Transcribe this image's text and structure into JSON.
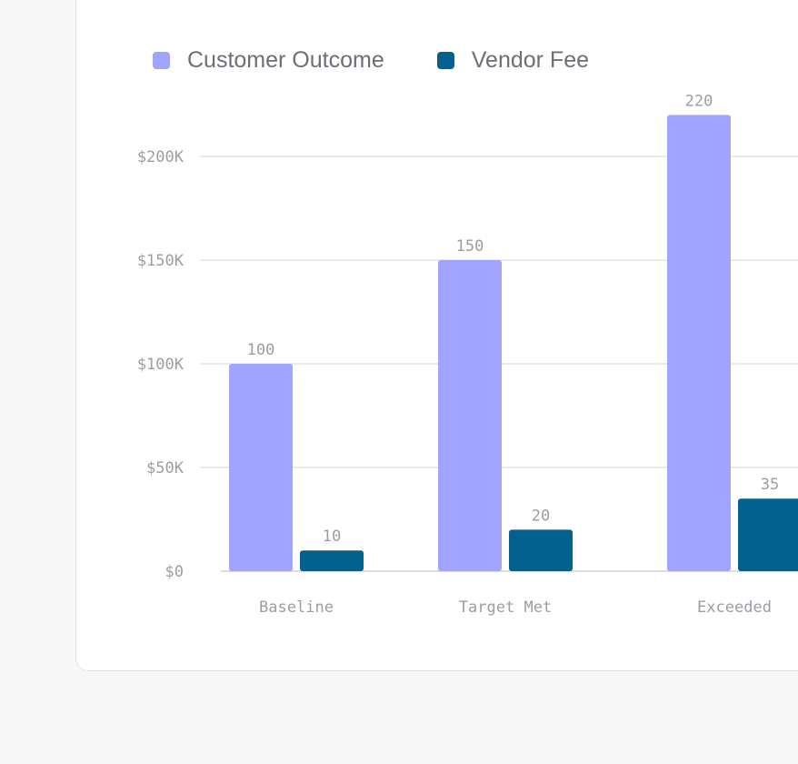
{
  "chart_data": {
    "type": "bar",
    "categories": [
      "Baseline",
      "Target Met",
      "Exceeded"
    ],
    "series": [
      {
        "name": "Customer Outcome",
        "values": [
          100,
          150,
          220
        ],
        "color": "#a0a4ff"
      },
      {
        "name": "Vendor Fee",
        "values": [
          10,
          20,
          35
        ],
        "color": "#02618f"
      }
    ],
    "data_labels": [
      [
        "100",
        "150",
        "220"
      ],
      [
        "10",
        "20",
        "35"
      ]
    ],
    "ytick_values": [
      0,
      50,
      100,
      150,
      200
    ],
    "ytick_labels": [
      "$0",
      "$50K",
      "$100K",
      "$150K",
      "$200K"
    ],
    "ylim": [
      0,
      200
    ],
    "grid": true,
    "legend_position": "top-left",
    "xlabel": "",
    "ylabel": ""
  }
}
